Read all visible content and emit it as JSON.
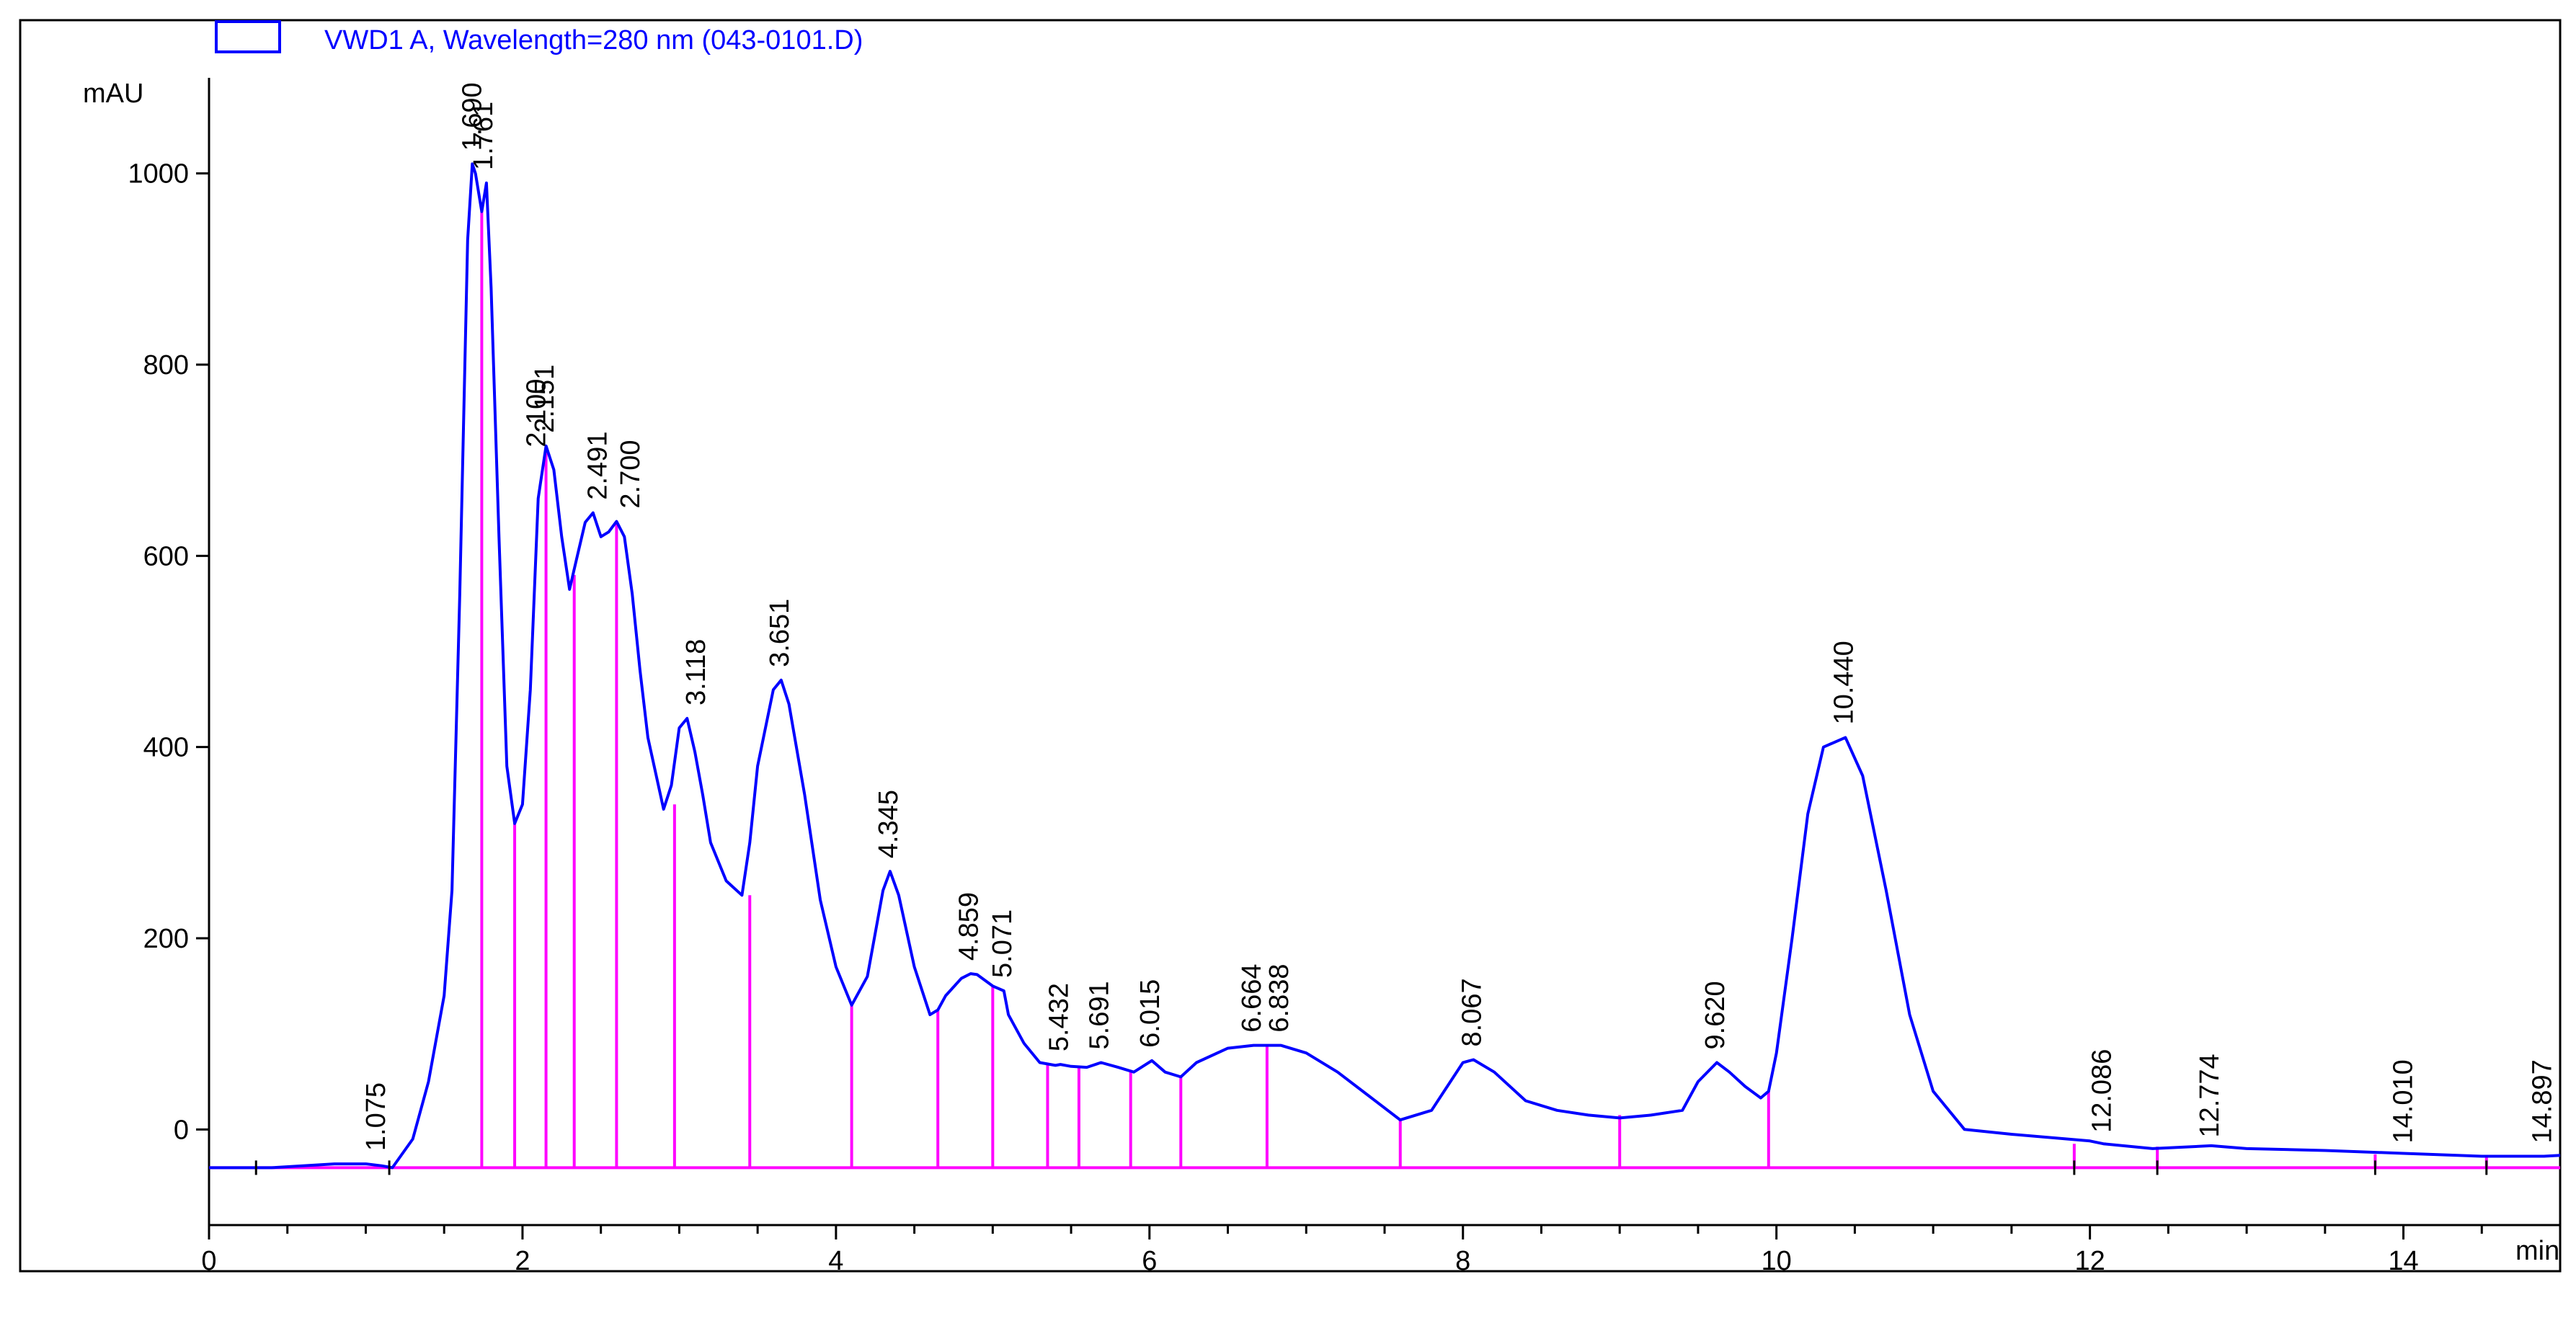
{
  "chart_data": {
    "type": "line",
    "title": "",
    "legend": {
      "label": "VWD1 A, Wavelength=280 nm (043-0101.D)",
      "placement": "top-left"
    },
    "xlabel": "min",
    "ylabel": "mAU",
    "xlim": [
      0,
      15
    ],
    "ylim": [
      -100,
      1100
    ],
    "xticks": [
      0,
      2,
      4,
      6,
      8,
      10,
      12,
      14
    ],
    "yticks": [
      0,
      200,
      400,
      600,
      800,
      1000
    ],
    "grid": false,
    "baseline_y": -40,
    "series": [
      {
        "name": "VWD1 A, Wavelength=280 nm (043-0101.D)",
        "color": "#0000ff",
        "x": [
          0,
          0.2,
          0.4,
          0.6,
          0.8,
          1.0,
          1.1,
          1.17,
          1.3,
          1.4,
          1.5,
          1.55,
          1.6,
          1.65,
          1.68,
          1.7,
          1.74,
          1.77,
          1.8,
          1.85,
          1.9,
          1.95,
          2.0,
          2.05,
          2.1,
          2.15,
          2.2,
          2.25,
          2.3,
          2.35,
          2.4,
          2.45,
          2.5,
          2.55,
          2.6,
          2.65,
          2.7,
          2.75,
          2.8,
          2.9,
          2.95,
          3.0,
          3.05,
          3.1,
          3.15,
          3.2,
          3.3,
          3.4,
          3.45,
          3.5,
          3.6,
          3.65,
          3.7,
          3.8,
          3.9,
          4.0,
          4.1,
          4.2,
          4.3,
          4.345,
          4.4,
          4.5,
          4.6,
          4.65,
          4.7,
          4.8,
          4.859,
          4.9,
          5.0,
          5.071,
          5.1,
          5.2,
          5.3,
          5.4,
          5.432,
          5.5,
          5.6,
          5.691,
          5.8,
          5.9,
          6.015,
          6.1,
          6.2,
          6.3,
          6.5,
          6.664,
          6.8,
          6.838,
          7.0,
          7.2,
          7.4,
          7.6,
          7.8,
          8.0,
          8.067,
          8.2,
          8.4,
          8.6,
          8.8,
          9.0,
          9.2,
          9.4,
          9.5,
          9.62,
          9.7,
          9.8,
          9.9,
          9.95,
          10.0,
          10.1,
          10.2,
          10.3,
          10.44,
          10.55,
          10.7,
          10.85,
          11.0,
          11.2,
          11.5,
          12.0,
          12.086,
          12.4,
          12.774,
          13.0,
          13.5,
          14.0,
          14.5,
          14.8,
          14.897,
          15.0
        ],
        "y": [
          -40,
          -40,
          -40,
          -38,
          -36,
          -36,
          -38,
          -40,
          -10,
          50,
          140,
          250,
          560,
          930,
          1010,
          1000,
          960,
          990,
          880,
          620,
          380,
          320,
          340,
          460,
          660,
          715,
          690,
          620,
          565,
          600,
          635,
          645,
          620,
          625,
          636,
          620,
          560,
          480,
          410,
          335,
          360,
          420,
          430,
          395,
          350,
          300,
          260,
          245,
          300,
          380,
          460,
          470,
          445,
          350,
          240,
          170,
          130,
          160,
          250,
          270,
          245,
          170,
          120,
          125,
          140,
          158,
          163,
          162,
          150,
          145,
          120,
          90,
          70,
          67,
          68,
          66,
          65,
          70,
          65,
          60,
          72,
          60,
          55,
          70,
          85,
          88,
          88,
          88,
          80,
          60,
          35,
          10,
          20,
          70,
          73,
          60,
          30,
          20,
          15,
          12,
          15,
          20,
          50,
          70,
          60,
          45,
          33,
          40,
          80,
          200,
          330,
          400,
          410,
          370,
          250,
          120,
          40,
          0,
          -5,
          -12,
          -15,
          -20,
          -17,
          -20,
          -22,
          -25,
          -28,
          -28,
          -28,
          -27
        ]
      }
    ],
    "peak_labels": [
      "1.075",
      "1.690",
      "1.761",
      "2.100",
      "2.151",
      "2.491",
      "2.700",
      "3.118",
      "3.651",
      "4.345",
      "4.859",
      "5.071",
      "5.432",
      "5.691",
      "6.015",
      "6.664",
      "6.838",
      "8.067",
      "9.620",
      "10.440",
      "12.086",
      "12.774",
      "14.010",
      "14.897"
    ],
    "peak_label_positions": [
      {
        "x": 1.075,
        "y": -36
      },
      {
        "x": 1.69,
        "y": 1010
      },
      {
        "x": 1.761,
        "y": 990
      },
      {
        "x": 2.1,
        "y": 700
      },
      {
        "x": 2.151,
        "y": 715
      },
      {
        "x": 2.491,
        "y": 645
      },
      {
        "x": 2.7,
        "y": 636
      },
      {
        "x": 3.118,
        "y": 430
      },
      {
        "x": 3.651,
        "y": 470
      },
      {
        "x": 4.345,
        "y": 270
      },
      {
        "x": 4.859,
        "y": 163
      },
      {
        "x": 5.071,
        "y": 145
      },
      {
        "x": 5.432,
        "y": 68
      },
      {
        "x": 5.691,
        "y": 70
      },
      {
        "x": 6.015,
        "y": 72
      },
      {
        "x": 6.664,
        "y": 88
      },
      {
        "x": 6.838,
        "y": 88
      },
      {
        "x": 8.067,
        "y": 73
      },
      {
        "x": 9.62,
        "y": 70
      },
      {
        "x": 10.44,
        "y": 410
      },
      {
        "x": 12.086,
        "y": -17
      },
      {
        "x": 12.774,
        "y": -22
      },
      {
        "x": 14.01,
        "y": -28
      },
      {
        "x": 14.897,
        "y": -28
      }
    ],
    "integration_drops": [
      {
        "x": 1.74,
        "y": 960
      },
      {
        "x": 1.95,
        "y": 320
      },
      {
        "x": 2.15,
        "y": 715
      },
      {
        "x": 2.33,
        "y": 580
      },
      {
        "x": 2.6,
        "y": 636
      },
      {
        "x": 2.97,
        "y": 340
      },
      {
        "x": 3.45,
        "y": 245
      },
      {
        "x": 4.1,
        "y": 130
      },
      {
        "x": 4.65,
        "y": 125
      },
      {
        "x": 5.0,
        "y": 150
      },
      {
        "x": 5.35,
        "y": 68
      },
      {
        "x": 5.55,
        "y": 66
      },
      {
        "x": 5.88,
        "y": 62
      },
      {
        "x": 6.2,
        "y": 55
      },
      {
        "x": 6.75,
        "y": 88
      },
      {
        "x": 7.6,
        "y": 10
      },
      {
        "x": 9.0,
        "y": 15
      },
      {
        "x": 9.95,
        "y": 40
      },
      {
        "x": 11.9,
        "y": -15
      },
      {
        "x": 12.43,
        "y": -18
      },
      {
        "x": 13.82,
        "y": -26
      },
      {
        "x": 14.53,
        "y": -28
      }
    ],
    "event_ticks_x": [
      0.3,
      1.15,
      11.9,
      12.43,
      13.82,
      14.53
    ]
  }
}
